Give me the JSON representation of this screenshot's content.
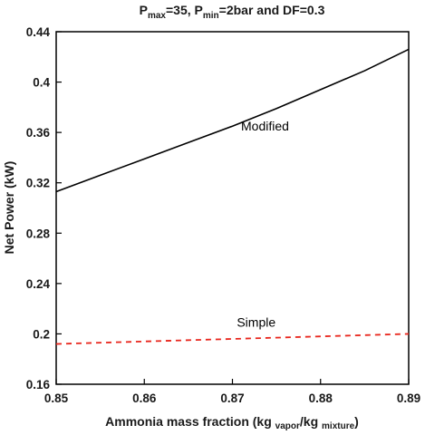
{
  "chart_data": {
    "type": "line",
    "title": {
      "p1": "P",
      "p1_sub": "max",
      "p1_rest": "=35, ",
      "p2": "P",
      "p2_sub": "min",
      "p2_rest": "=2bar and DF=0.3"
    },
    "xlabel": {
      "main": "Ammonia mass fraction (kg ",
      "sub1": "vapor",
      "mid": "/kg ",
      "sub2": "mixture",
      "end": ")"
    },
    "ylabel": "Net Power (kW)",
    "xlim": [
      0.85,
      0.89
    ],
    "ylim": [
      0.16,
      0.44
    ],
    "x_ticks": [
      "0.85",
      "0.86",
      "0.87",
      "0.88",
      "0.89"
    ],
    "y_ticks": [
      "0.16",
      "0.2",
      "0.24",
      "0.28",
      "0.32",
      "0.36",
      "0.4",
      "0.44"
    ],
    "grid": false,
    "annotations": [
      "Modified",
      "Simple"
    ],
    "series": [
      {
        "name": "Modified",
        "color": "#000000",
        "style": "solid",
        "x": [
          0.85,
          0.855,
          0.86,
          0.865,
          0.87,
          0.875,
          0.88,
          0.885,
          0.89
        ],
        "y": [
          0.313,
          0.326,
          0.339,
          0.352,
          0.365,
          0.379,
          0.394,
          0.409,
          0.426
        ]
      },
      {
        "name": "Simple",
        "color": "#e8251c",
        "style": "dashed",
        "x": [
          0.85,
          0.86,
          0.87,
          0.88,
          0.89
        ],
        "y": [
          0.192,
          0.194,
          0.196,
          0.198,
          0.2
        ]
      }
    ]
  }
}
